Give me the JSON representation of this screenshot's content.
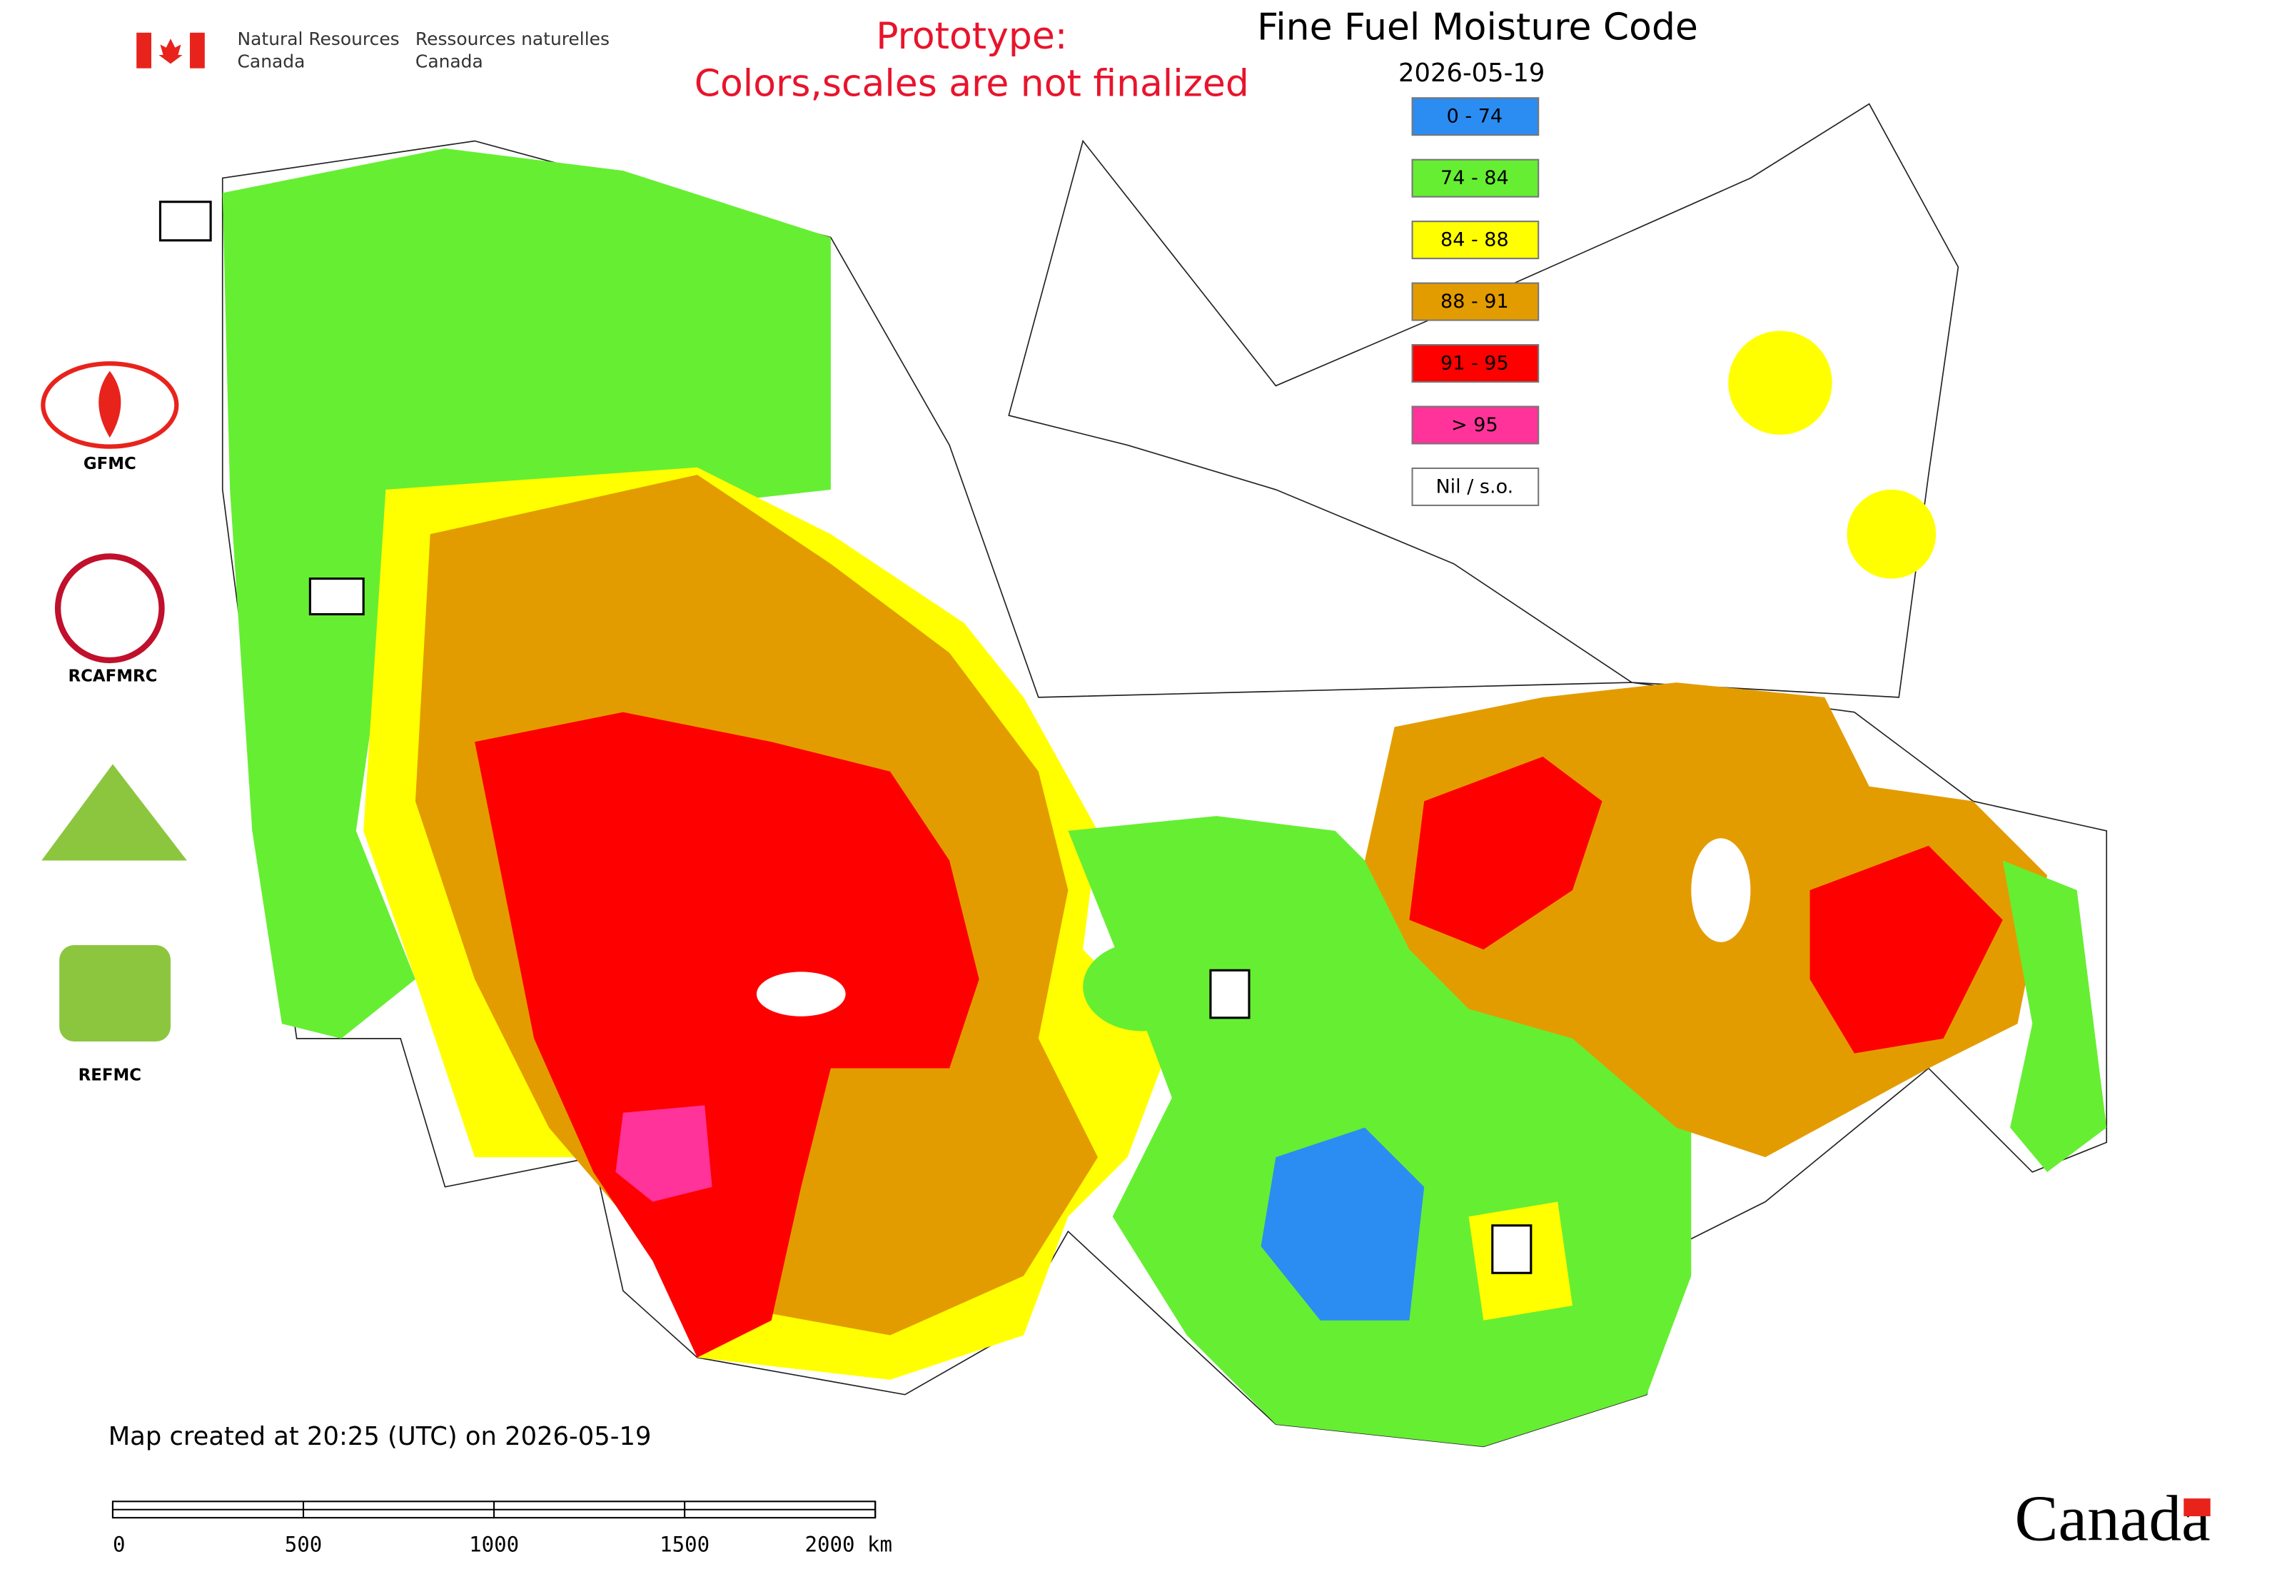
{
  "header": {
    "agency_en": [
      "Natural Resources",
      "Canada"
    ],
    "agency_fr": [
      "Ressources naturelles",
      "Canada"
    ],
    "notice": [
      "Prototype:",
      "Colors,scales are not finalized"
    ],
    "title": "Fine Fuel Moisture Code",
    "date": "2026-05-19"
  },
  "legend": [
    {
      "label": "0 - 74",
      "color": "#2b8cf2"
    },
    {
      "label": "74 - 84",
      "color": "#66ee33"
    },
    {
      "label": "84 - 88",
      "color": "#ffff00"
    },
    {
      "label": "88 - 91",
      "color": "#e39c00"
    },
    {
      "label": "91 - 95",
      "color": "#ff0000"
    },
    {
      "label": "> 95",
      "color": "#ff3399"
    },
    {
      "label": "Nil / s.o.",
      "color": "#ffffff"
    }
  ],
  "logos": [
    "GFMC",
    "RCAFMRC",
    "REFMC"
  ],
  "footer": {
    "created": "Map created at 20:25 (UTC) on 2026-05-19",
    "scale_labels": [
      "0",
      "500",
      "1000",
      "1500",
      "2000 km"
    ],
    "wordmark": "Canada"
  }
}
